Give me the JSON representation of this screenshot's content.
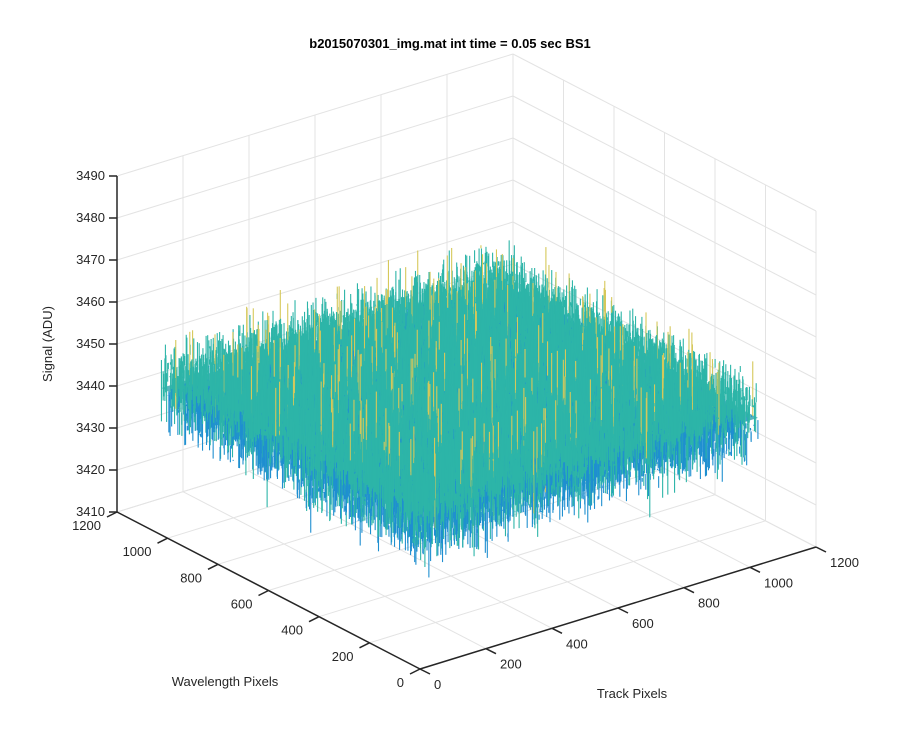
{
  "chart_data": {
    "type": "surface",
    "title": "b2015070301_img.mat int time = 0.05 sec   BS1",
    "xlabel": "Track Pixels",
    "ylabel": "Wavelength Pixels",
    "zlabel": "Signal (ADU)",
    "xlim": [
      0,
      1200
    ],
    "ylim": [
      0,
      1200
    ],
    "zlim": [
      3410,
      3490
    ],
    "x_ticks": [
      0,
      200,
      400,
      600,
      800,
      1000,
      1200
    ],
    "y_ticks": [
      0,
      200,
      400,
      600,
      800,
      1000,
      1200
    ],
    "z_ticks": [
      3410,
      3420,
      3430,
      3440,
      3450,
      3460,
      3470,
      3480,
      3490
    ],
    "surface_extent": {
      "x": [
        0,
        1024
      ],
      "y": [
        0,
        1024
      ]
    },
    "signal_range": [
      3420,
      3480
    ],
    "signal_mean": 3445,
    "grid": "on",
    "colormap": "parula",
    "colors": {
      "low": "#1f8fd0",
      "mid": "#2db5a8",
      "high": "#d6c85a"
    }
  }
}
